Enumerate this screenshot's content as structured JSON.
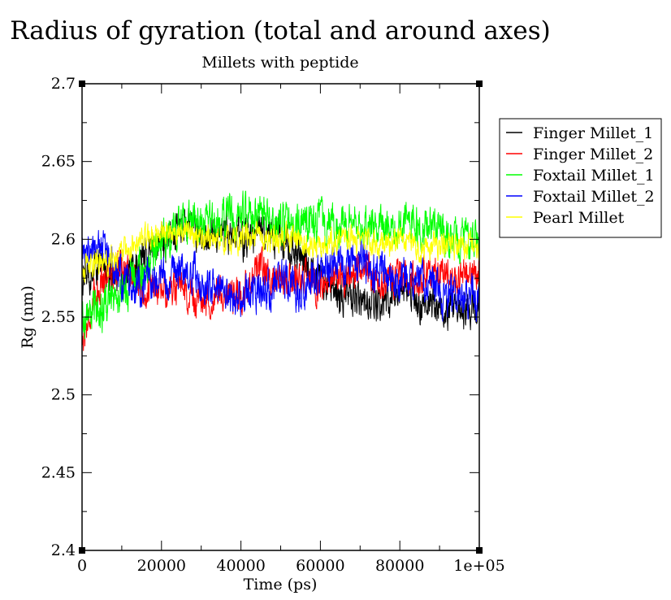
{
  "chart_data": {
    "type": "line",
    "title": "Radius of gyration (total and around axes)",
    "subtitle": "Millets with peptide",
    "xlabel": "Time (ps)",
    "ylabel": "Rg (nm)",
    "xlim": [
      0,
      100000
    ],
    "ylim": [
      2.4,
      2.7
    ],
    "grid": false,
    "legend_position": "right",
    "x_ticks": [
      {
        "value": 0,
        "label": "0"
      },
      {
        "value": 20000,
        "label": "20000"
      },
      {
        "value": 40000,
        "label": "40000"
      },
      {
        "value": 60000,
        "label": "60000"
      },
      {
        "value": 80000,
        "label": "80000"
      },
      {
        "value": 100000,
        "label": "1e+05"
      }
    ],
    "y_ticks": [
      {
        "value": 2.4,
        "label": "2.4"
      },
      {
        "value": 2.45,
        "label": "2.45"
      },
      {
        "value": 2.5,
        "label": "2.5"
      },
      {
        "value": 2.55,
        "label": "2.55"
      },
      {
        "value": 2.6,
        "label": "2.6"
      },
      {
        "value": 2.65,
        "label": "2.65"
      },
      {
        "value": 2.7,
        "label": "2.7"
      }
    ],
    "series": [
      {
        "name": "Finger Millet_1",
        "color": "#000000",
        "x": [
          0,
          5000,
          10000,
          15000,
          20000,
          25000,
          30000,
          35000,
          40000,
          45000,
          50000,
          55000,
          60000,
          65000,
          70000,
          75000,
          80000,
          85000,
          90000,
          95000,
          100000
        ],
        "values": [
          2.575,
          2.585,
          2.575,
          2.585,
          2.6,
          2.61,
          2.605,
          2.605,
          2.6,
          2.605,
          2.6,
          2.59,
          2.575,
          2.565,
          2.56,
          2.56,
          2.565,
          2.56,
          2.555,
          2.555,
          2.56
        ],
        "amplitude": 0.012
      },
      {
        "name": "Finger Millet_2",
        "color": "#ff0000",
        "x": [
          0,
          5000,
          10000,
          15000,
          20000,
          25000,
          30000,
          35000,
          40000,
          45000,
          50000,
          55000,
          60000,
          65000,
          70000,
          75000,
          80000,
          85000,
          90000,
          95000,
          100000
        ],
        "values": [
          2.535,
          2.575,
          2.585,
          2.565,
          2.57,
          2.565,
          2.56,
          2.565,
          2.565,
          2.58,
          2.575,
          2.575,
          2.57,
          2.575,
          2.58,
          2.575,
          2.575,
          2.575,
          2.58,
          2.575,
          2.58
        ],
        "amplitude": 0.011
      },
      {
        "name": "Foxtail Millet_1",
        "color": "#00ff00",
        "x": [
          0,
          5000,
          10000,
          15000,
          20000,
          25000,
          30000,
          35000,
          40000,
          45000,
          50000,
          55000,
          60000,
          65000,
          70000,
          75000,
          80000,
          85000,
          90000,
          95000,
          100000
        ],
        "values": [
          2.55,
          2.555,
          2.565,
          2.58,
          2.6,
          2.61,
          2.61,
          2.615,
          2.615,
          2.615,
          2.61,
          2.61,
          2.61,
          2.605,
          2.61,
          2.605,
          2.61,
          2.61,
          2.605,
          2.6,
          2.605
        ],
        "amplitude": 0.013
      },
      {
        "name": "Foxtail Millet_2",
        "color": "#0000ff",
        "x": [
          0,
          5000,
          10000,
          15000,
          20000,
          25000,
          30000,
          35000,
          40000,
          45000,
          50000,
          55000,
          60000,
          65000,
          70000,
          75000,
          80000,
          85000,
          90000,
          95000,
          100000
        ],
        "values": [
          2.59,
          2.595,
          2.575,
          2.57,
          2.575,
          2.58,
          2.575,
          2.565,
          2.56,
          2.565,
          2.575,
          2.565,
          2.58,
          2.585,
          2.585,
          2.58,
          2.575,
          2.575,
          2.565,
          2.56,
          2.565
        ],
        "amplitude": 0.012
      },
      {
        "name": "Pearl Millet",
        "color": "#ffff00",
        "x": [
          0,
          5000,
          10000,
          15000,
          20000,
          25000,
          30000,
          35000,
          40000,
          45000,
          50000,
          55000,
          60000,
          65000,
          70000,
          75000,
          80000,
          85000,
          90000,
          95000,
          100000
        ],
        "values": [
          2.58,
          2.585,
          2.59,
          2.6,
          2.605,
          2.605,
          2.6,
          2.6,
          2.6,
          2.6,
          2.6,
          2.6,
          2.595,
          2.6,
          2.6,
          2.595,
          2.6,
          2.595,
          2.595,
          2.595,
          2.595
        ],
        "amplitude": 0.008
      }
    ]
  }
}
